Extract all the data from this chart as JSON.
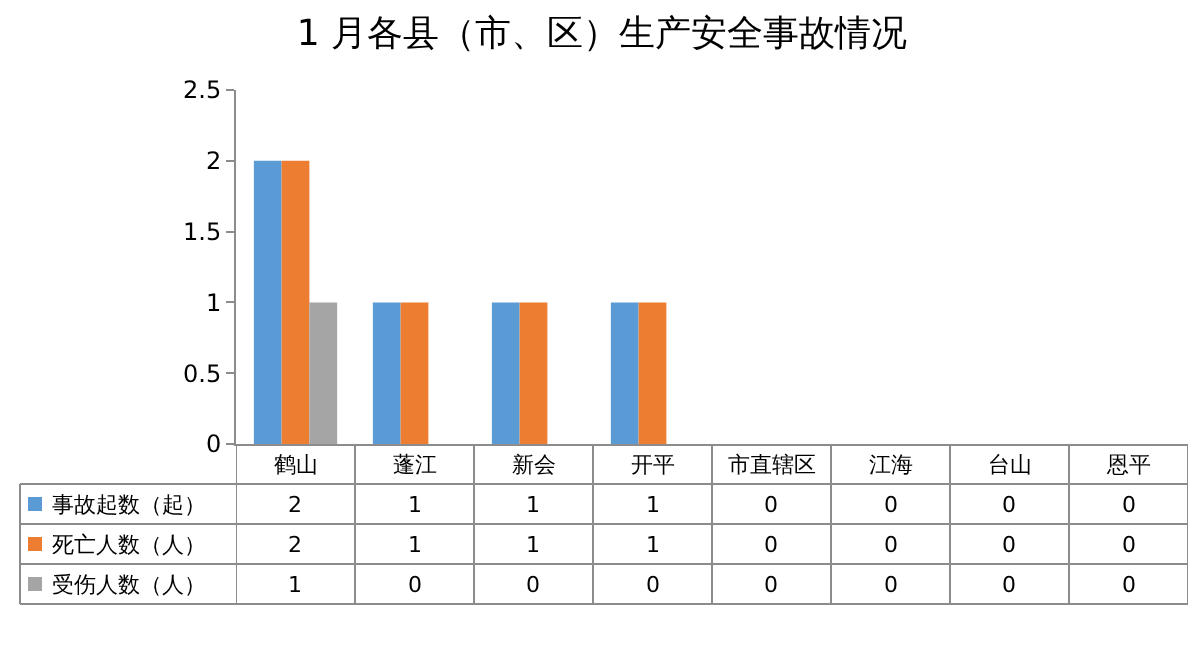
{
  "chart_data": {
    "type": "bar",
    "title": "1 月各县（市、区）生产安全事故情况",
    "categories": [
      "鹤山",
      "蓬江",
      "新会",
      "开平",
      "市直辖区",
      "江海",
      "台山",
      "恩平"
    ],
    "series": [
      {
        "name": "事故起数（起）",
        "color": "#5b9bd5",
        "values": [
          2,
          1,
          1,
          1,
          0,
          0,
          0,
          0
        ]
      },
      {
        "name": "死亡人数（人）",
        "color": "#ed7d31",
        "values": [
          2,
          1,
          1,
          1,
          0,
          0,
          0,
          0
        ]
      },
      {
        "name": "受伤人数（人）",
        "color": "#a5a5a5",
        "values": [
          1,
          0,
          0,
          0,
          0,
          0,
          0,
          0
        ]
      }
    ],
    "ylim": [
      0,
      2.5
    ],
    "yticks": [
      0,
      0.5,
      1,
      1.5,
      2,
      2.5
    ],
    "data_labels": true,
    "legend": "bottom"
  }
}
